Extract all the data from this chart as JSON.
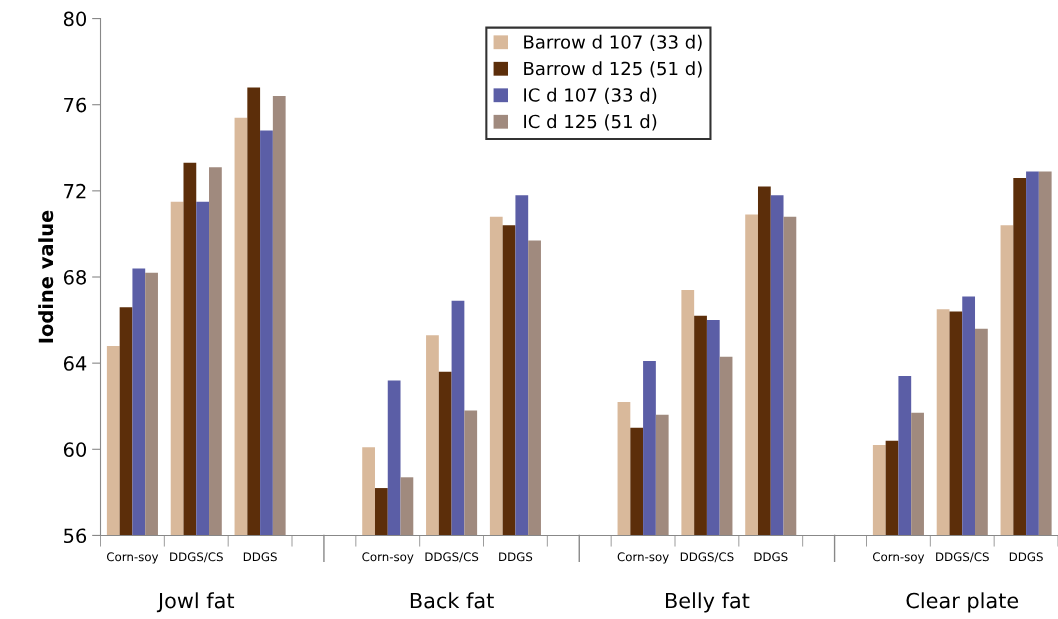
{
  "chart_data": {
    "type": "bar",
    "ylabel": "Iodine value",
    "categories": [
      "Corn-soy",
      "DDGS/CS",
      "DDGS",
      null,
      "Corn-soy",
      "DDGS/CS",
      "DDGS",
      null,
      "Corn-soy",
      "DDGS/CS",
      "DDGS",
      null,
      "Corn-soy",
      "DDGS/CS",
      "DDGS"
    ],
    "series": [
      {
        "name": "Barrow d 107 (33 d)",
        "color": "#d9b99b",
        "values": [
          64.8,
          71.5,
          75.4,
          null,
          60.1,
          65.3,
          70.8,
          null,
          62.2,
          67.4,
          70.9,
          null,
          60.2,
          66.5,
          70.4
        ]
      },
      {
        "name": "Barrow d 125 (51 d)",
        "color": "#5c2e0a",
        "values": [
          66.6,
          73.3,
          76.8,
          null,
          58.2,
          63.6,
          70.4,
          null,
          61.0,
          66.2,
          72.2,
          null,
          60.4,
          66.4,
          72.6
        ]
      },
      {
        "name": "IC d 107 (33 d)",
        "color": "#5b5ea6",
        "values": [
          68.4,
          71.5,
          74.8,
          null,
          63.2,
          66.9,
          71.8,
          null,
          64.1,
          66.0,
          71.8,
          null,
          63.4,
          67.1,
          72.9
        ]
      },
      {
        "name": "IC d 125 (51 d)",
        "color": "#a08a7e",
        "values": [
          68.2,
          73.1,
          76.4,
          null,
          58.7,
          61.8,
          69.7,
          null,
          61.6,
          64.3,
          70.8,
          null,
          61.7,
          65.6,
          72.9
        ]
      }
    ],
    "annotations": [
      "Jowl fat",
      "Back fat",
      "Belly fat",
      "Clear plate"
    ],
    "ylim": [
      56,
      80
    ],
    "yticks": [
      56,
      60,
      64,
      68,
      72,
      76,
      80
    ],
    "grid": false,
    "legend": "top"
  }
}
